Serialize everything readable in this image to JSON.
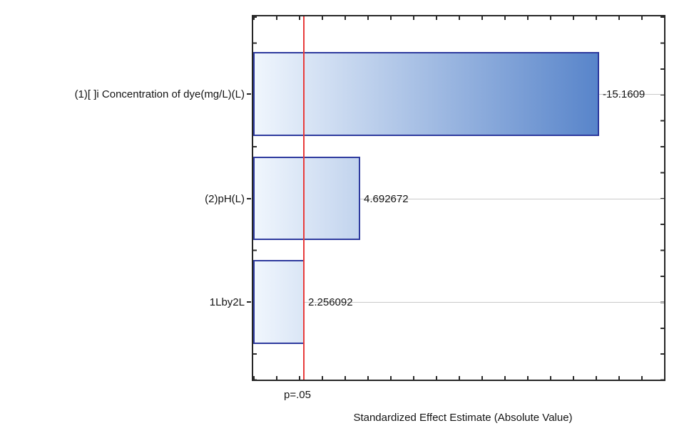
{
  "chart_data": {
    "type": "bar",
    "orientation": "horizontal",
    "xlabel": "Standardized Effect Estimate (Absolute Value)",
    "categories": [
      "(1)[ ]i Concentration of dye(mg/L)(L)",
      "(2)pH(L)",
      "1Lby2L"
    ],
    "values": [
      15.1609,
      4.692672,
      2.256092
    ],
    "value_labels": [
      "-15.1609",
      "4.692672",
      "2.256092"
    ],
    "significance_line": {
      "label": "p=.05",
      "value": 2.19
    },
    "xlim": [
      0,
      18
    ],
    "ylabel": "",
    "grid": false,
    "legend": "none",
    "colors": {
      "bar_gradient_start": "#f0f6fd",
      "bar_gradient_end": "#3a6ec0",
      "bar_border": "#2e3a9e",
      "significance_line": "#e83c3c",
      "leader_line": "#c9c9c9",
      "frame": "#262626"
    }
  }
}
